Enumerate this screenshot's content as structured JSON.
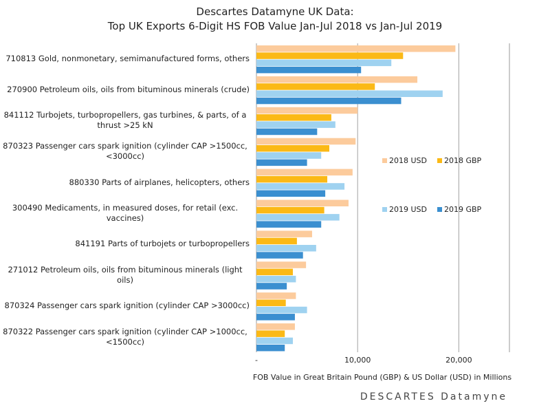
{
  "chart_data": {
    "type": "bar",
    "orientation": "horizontal",
    "title": "Descartes Datamyne UK Data:",
    "subtitle": "Top UK Exports 6-Digit HS FOB Value Jan-Jul 2018 vs Jan-Jul 2019",
    "x_label": "FOB Value in Great Britain Pound (GBP) & US Dollar (USD) in Millions",
    "categories": [
      "710813 Gold, nonmonetary, semimanufactured forms, others",
      "270900 Petroleum oils, oils from bituminous minerals (crude)",
      "841112 Turbojets, turbopropellers, gas turbines, & parts, of a thrust >25 kN",
      "870323 Passenger cars spark ignition (cylinder CAP >1500cc, <3000cc)",
      "880330 Parts of airplanes, helicopters, others",
      "300490 Medicaments, in measured doses, for retail (exc. vaccines)",
      "841191 Parts of turbojets or turbopropellers",
      "271012 Petroleum oils, oils from bituminous minerals (light oils)",
      "870324 Passenger cars spark ignition (cylinder CAP >3000cc)",
      "870322 Passenger cars spark ignition (cylinder CAP >1000cc, <1500cc)"
    ],
    "series": [
      {
        "name": "2018 USD",
        "color": "#fccb9c",
        "values": [
          19660,
          15900,
          10000,
          9800,
          9500,
          9100,
          5500,
          4900,
          3900,
          3800
        ]
      },
      {
        "name": "2018 GBP",
        "color": "#fbb916",
        "values": [
          14490,
          11700,
          7400,
          7200,
          7000,
          6700,
          4000,
          3600,
          2900,
          2800
        ]
      },
      {
        "name": "2019 USD",
        "color": "#9fd2f0",
        "values": [
          13330,
          18400,
          7800,
          6400,
          8700,
          8200,
          5900,
          3900,
          5000,
          3600
        ]
      },
      {
        "name": "2019 GBP",
        "color": "#3b8fd0",
        "values": [
          10340,
          14300,
          6000,
          5000,
          6800,
          6400,
          4600,
          3000,
          3800,
          2800
        ]
      }
    ],
    "xlim": [
      0,
      25000
    ],
    "xticks": [
      {
        "value": 0,
        "label": "-"
      },
      {
        "value": 10000,
        "label": "10,000"
      },
      {
        "value": 20000,
        "label": "20,000"
      }
    ],
    "grid": true,
    "legend_position": "right",
    "logo": "DESCARTES Datamyne"
  }
}
